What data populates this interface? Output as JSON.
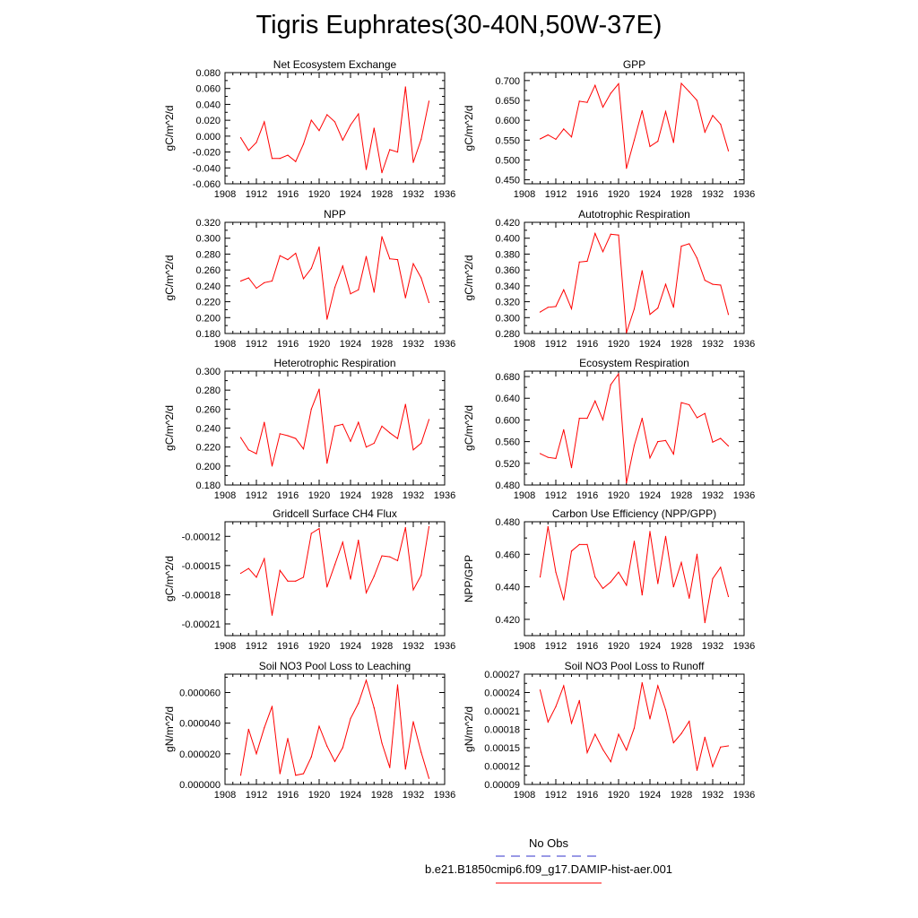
{
  "title": "Tigris Euphrates(30-40N,50W-37E)",
  "legend": {
    "obs_label": "No Obs",
    "obs_color": "#3333cc",
    "model_label": "b.e21.B1850cmip6.f09_g17.DAMIP-hist-aer.001",
    "model_color": "#ff0000"
  },
  "chart_data": [
    {
      "type": "line",
      "title": "Net Ecosystem Exchange",
      "ylabel": "gC/m^2/d",
      "xlim": [
        1908,
        1936
      ],
      "xticks": [
        1908,
        1912,
        1916,
        1920,
        1924,
        1928,
        1932,
        1936
      ],
      "ylim": [
        -0.06,
        0.08
      ],
      "yticks": [
        "0.080",
        "0.060",
        "0.040",
        "0.020",
        "0.000",
        "-0.020",
        "-0.040",
        "-0.060"
      ],
      "ytick_values": [
        0.08,
        0.06,
        0.04,
        0.02,
        0.0,
        -0.02,
        -0.04,
        -0.06
      ],
      "x": [
        1910,
        1911,
        1912,
        1913,
        1914,
        1915,
        1916,
        1917,
        1918,
        1919,
        1920,
        1921,
        1922,
        1923,
        1924,
        1925,
        1926,
        1927,
        1928,
        1929,
        1930,
        1931,
        1932,
        1933,
        1934
      ],
      "values": [
        -0.002,
        -0.018,
        -0.008,
        0.018,
        -0.028,
        -0.028,
        -0.024,
        -0.032,
        -0.01,
        0.02,
        0.007,
        0.027,
        0.018,
        -0.005,
        0.014,
        0.028,
        -0.042,
        0.01,
        -0.046,
        -0.017,
        -0.02,
        0.062,
        -0.033,
        -0.004,
        0.044
      ]
    },
    {
      "type": "line",
      "title": "GPP",
      "ylabel": "gC/m^2/d",
      "xlim": [
        1908,
        1936
      ],
      "xticks": [
        1908,
        1912,
        1916,
        1920,
        1924,
        1928,
        1932,
        1936
      ],
      "ylim": [
        0.44,
        0.72
      ],
      "yticks": [
        "0.700",
        "0.650",
        "0.600",
        "0.550",
        "0.500",
        "0.450"
      ],
      "ytick_values": [
        0.7,
        0.65,
        0.6,
        0.55,
        0.5,
        0.45
      ],
      "x": [
        1910,
        1911,
        1912,
        1913,
        1914,
        1915,
        1916,
        1917,
        1918,
        1919,
        1920,
        1921,
        1922,
        1923,
        1924,
        1925,
        1926,
        1927,
        1928,
        1929,
        1930,
        1931,
        1932,
        1933,
        1934
      ],
      "values": [
        0.553,
        0.563,
        0.552,
        0.578,
        0.558,
        0.648,
        0.645,
        0.688,
        0.633,
        0.668,
        0.692,
        0.479,
        0.55,
        0.624,
        0.534,
        0.547,
        0.622,
        0.544,
        0.693,
        0.672,
        0.65,
        0.57,
        0.612,
        0.59,
        0.523
      ]
    },
    {
      "type": "line",
      "title": "NPP",
      "ylabel": "gC/m^2/d",
      "xlim": [
        1908,
        1936
      ],
      "xticks": [
        1908,
        1912,
        1916,
        1920,
        1924,
        1928,
        1932,
        1936
      ],
      "ylim": [
        0.18,
        0.32
      ],
      "yticks": [
        "0.320",
        "0.300",
        "0.280",
        "0.260",
        "0.240",
        "0.220",
        "0.200",
        "0.180"
      ],
      "ytick_values": [
        0.32,
        0.3,
        0.28,
        0.26,
        0.24,
        0.22,
        0.2,
        0.18
      ],
      "x": [
        1910,
        1911,
        1912,
        1913,
        1914,
        1915,
        1916,
        1917,
        1918,
        1919,
        1920,
        1921,
        1922,
        1923,
        1924,
        1925,
        1926,
        1927,
        1928,
        1929,
        1930,
        1931,
        1932,
        1933,
        1934
      ],
      "values": [
        0.246,
        0.25,
        0.237,
        0.244,
        0.246,
        0.278,
        0.273,
        0.281,
        0.249,
        0.262,
        0.289,
        0.198,
        0.238,
        0.265,
        0.23,
        0.235,
        0.277,
        0.232,
        0.302,
        0.274,
        0.273,
        0.225,
        0.268,
        0.25,
        0.219
      ]
    },
    {
      "type": "line",
      "title": "Autotrophic Respiration",
      "ylabel": "gC/m^2/d",
      "xlim": [
        1908,
        1936
      ],
      "xticks": [
        1908,
        1912,
        1916,
        1920,
        1924,
        1928,
        1932,
        1936
      ],
      "ylim": [
        0.28,
        0.42
      ],
      "yticks": [
        "0.420",
        "0.400",
        "0.380",
        "0.360",
        "0.340",
        "0.320",
        "0.300",
        "0.280"
      ],
      "ytick_values": [
        0.42,
        0.4,
        0.38,
        0.36,
        0.34,
        0.32,
        0.3,
        0.28
      ],
      "x": [
        1910,
        1911,
        1912,
        1913,
        1914,
        1915,
        1916,
        1917,
        1918,
        1919,
        1920,
        1921,
        1922,
        1923,
        1924,
        1925,
        1926,
        1927,
        1928,
        1929,
        1930,
        1931,
        1932,
        1933,
        1934
      ],
      "values": [
        0.307,
        0.313,
        0.314,
        0.335,
        0.311,
        0.37,
        0.371,
        0.406,
        0.383,
        0.405,
        0.404,
        0.281,
        0.311,
        0.359,
        0.304,
        0.312,
        0.342,
        0.313,
        0.39,
        0.393,
        0.375,
        0.347,
        0.342,
        0.341,
        0.304
      ]
    },
    {
      "type": "line",
      "title": "Heterotrophic Respiration",
      "ylabel": "gC/m^2/d",
      "xlim": [
        1908,
        1936
      ],
      "xticks": [
        1908,
        1912,
        1916,
        1920,
        1924,
        1928,
        1932,
        1936
      ],
      "ylim": [
        0.18,
        0.3
      ],
      "yticks": [
        "0.300",
        "0.280",
        "0.260",
        "0.240",
        "0.220",
        "0.200",
        "0.180"
      ],
      "ytick_values": [
        0.3,
        0.28,
        0.26,
        0.24,
        0.22,
        0.2,
        0.18
      ],
      "x": [
        1910,
        1911,
        1912,
        1913,
        1914,
        1915,
        1916,
        1917,
        1918,
        1919,
        1920,
        1921,
        1922,
        1923,
        1924,
        1925,
        1926,
        1927,
        1928,
        1929,
        1930,
        1931,
        1932,
        1933,
        1934
      ],
      "values": [
        0.23,
        0.217,
        0.213,
        0.246,
        0.2,
        0.234,
        0.232,
        0.229,
        0.218,
        0.26,
        0.281,
        0.203,
        0.242,
        0.244,
        0.226,
        0.246,
        0.22,
        0.224,
        0.242,
        0.235,
        0.229,
        0.265,
        0.217,
        0.224,
        0.249
      ]
    },
    {
      "type": "line",
      "title": "Ecosystem Respiration",
      "ylabel": "gC/m^2/d",
      "xlim": [
        1908,
        1936
      ],
      "xticks": [
        1908,
        1912,
        1916,
        1920,
        1924,
        1928,
        1932,
        1936
      ],
      "ylim": [
        0.48,
        0.69
      ],
      "yticks": [
        "0.680",
        "0.640",
        "0.600",
        "0.560",
        "0.520",
        "0.480"
      ],
      "ytick_values": [
        0.68,
        0.64,
        0.6,
        0.56,
        0.52,
        0.48
      ],
      "x": [
        1910,
        1911,
        1912,
        1913,
        1914,
        1915,
        1916,
        1917,
        1918,
        1919,
        1920,
        1921,
        1922,
        1923,
        1924,
        1925,
        1926,
        1927,
        1928,
        1929,
        1930,
        1931,
        1932,
        1933,
        1934
      ],
      "values": [
        0.538,
        0.531,
        0.529,
        0.582,
        0.512,
        0.603,
        0.603,
        0.635,
        0.6,
        0.665,
        0.685,
        0.484,
        0.553,
        0.603,
        0.53,
        0.56,
        0.562,
        0.537,
        0.632,
        0.628,
        0.604,
        0.612,
        0.559,
        0.566,
        0.552
      ]
    },
    {
      "type": "line",
      "title": "Gridcell Surface CH4 Flux",
      "ylabel": "gC/m^2/d",
      "xlim": [
        1908,
        1936
      ],
      "xticks": [
        1908,
        1912,
        1916,
        1920,
        1924,
        1928,
        1932,
        1936
      ],
      "ylim": [
        -0.000222,
        -0.000105
      ],
      "yticks": [
        "-0.00012",
        "-0.00015",
        "-0.00018",
        "-0.00021"
      ],
      "ytick_values": [
        -0.00012,
        -0.00015,
        -0.00018,
        -0.00021
      ],
      "x": [
        1910,
        1911,
        1912,
        1913,
        1914,
        1915,
        1916,
        1917,
        1918,
        1919,
        1920,
        1921,
        1922,
        1923,
        1924,
        1925,
        1926,
        1927,
        1928,
        1929,
        1930,
        1931,
        1932,
        1933,
        1934
      ],
      "values": [
        -0.000158,
        -0.000153,
        -0.000162,
        -0.000143,
        -0.000201,
        -0.000155,
        -0.000166,
        -0.000166,
        -0.000162,
        -0.000117,
        -0.000112,
        -0.000172,
        -0.000149,
        -0.000126,
        -0.000164,
        -0.000124,
        -0.000178,
        -0.000161,
        -0.00014,
        -0.000141,
        -0.000145,
        -0.000111,
        -0.000175,
        -0.00016,
        -0.00011
      ]
    },
    {
      "type": "line",
      "title": "Carbon Use Efficiency (NPP/GPP)",
      "ylabel": "NPP/GPP",
      "xlim": [
        1908,
        1936
      ],
      "xticks": [
        1908,
        1912,
        1916,
        1920,
        1924,
        1928,
        1932,
        1936
      ],
      "ylim": [
        0.41,
        0.48
      ],
      "yticks": [
        "0.480",
        "0.460",
        "0.440",
        "0.420"
      ],
      "ytick_values": [
        0.48,
        0.46,
        0.44,
        0.42
      ],
      "x": [
        1910,
        1911,
        1912,
        1913,
        1914,
        1915,
        1916,
        1917,
        1918,
        1919,
        1920,
        1921,
        1922,
        1923,
        1924,
        1925,
        1926,
        1927,
        1928,
        1929,
        1930,
        1931,
        1932,
        1933,
        1934
      ],
      "values": [
        0.446,
        0.477,
        0.449,
        0.432,
        0.462,
        0.466,
        0.466,
        0.446,
        0.439,
        0.443,
        0.449,
        0.441,
        0.468,
        0.435,
        0.474,
        0.442,
        0.471,
        0.44,
        0.455,
        0.433,
        0.46,
        0.418,
        0.445,
        0.452,
        0.434
      ]
    },
    {
      "type": "line",
      "title": "Soil NO3 Pool Loss to Leaching",
      "ylabel": "gN/m^2/d",
      "xlim": [
        1908,
        1936
      ],
      "xticks": [
        1908,
        1912,
        1916,
        1920,
        1924,
        1928,
        1932,
        1936
      ],
      "ylim": [
        0.0,
        7.2e-05
      ],
      "yticks": [
        "0.000060",
        "0.000040",
        "0.000020",
        "0.000000"
      ],
      "ytick_values": [
        6e-05,
        4e-05,
        2e-05,
        0.0
      ],
      "x": [
        1910,
        1911,
        1912,
        1913,
        1914,
        1915,
        1916,
        1917,
        1918,
        1919,
        1920,
        1921,
        1922,
        1923,
        1924,
        1925,
        1926,
        1927,
        1928,
        1929,
        1930,
        1931,
        1932,
        1933,
        1934
      ],
      "values": [
        6e-06,
        3.6e-05,
        2e-05,
        3.7e-05,
        5.1e-05,
        7e-06,
        3e-05,
        6e-06,
        7e-06,
        1.8e-05,
        3.8e-05,
        2.5e-05,
        1.5e-05,
        2.4e-05,
        4.3e-05,
        5.3e-05,
        6.8e-05,
        5e-05,
        2.7e-05,
        1.1e-05,
        6.5e-05,
        1e-05,
        4.1e-05,
        2.1e-05,
        4e-06
      ]
    },
    {
      "type": "line",
      "title": "Soil NO3 Pool Loss to Runoff",
      "ylabel": "gN/m^2/d",
      "xlim": [
        1908,
        1936
      ],
      "xticks": [
        1908,
        1912,
        1916,
        1920,
        1924,
        1928,
        1932,
        1936
      ],
      "ylim": [
        9e-05,
        0.00027
      ],
      "yticks": [
        "0.00027",
        "0.00024",
        "0.00021",
        "0.00018",
        "0.00015",
        "0.00012",
        "0.00009"
      ],
      "ytick_values": [
        0.00027,
        0.00024,
        0.00021,
        0.00018,
        0.00015,
        0.00012,
        9e-05
      ],
      "x": [
        1910,
        1911,
        1912,
        1913,
        1914,
        1915,
        1916,
        1917,
        1918,
        1919,
        1920,
        1921,
        1922,
        1923,
        1924,
        1925,
        1926,
        1927,
        1928,
        1929,
        1930,
        1931,
        1932,
        1933,
        1934
      ],
      "values": [
        0.000244,
        0.000192,
        0.000217,
        0.000251,
        0.00019,
        0.000227,
        0.000142,
        0.000172,
        0.000147,
        0.000127,
        0.000172,
        0.000146,
        0.000182,
        0.000256,
        0.000197,
        0.000251,
        0.000212,
        0.000158,
        0.000173,
        0.000193,
        0.000113,
        0.000167,
        0.000119,
        0.000151,
        0.000153
      ]
    }
  ]
}
